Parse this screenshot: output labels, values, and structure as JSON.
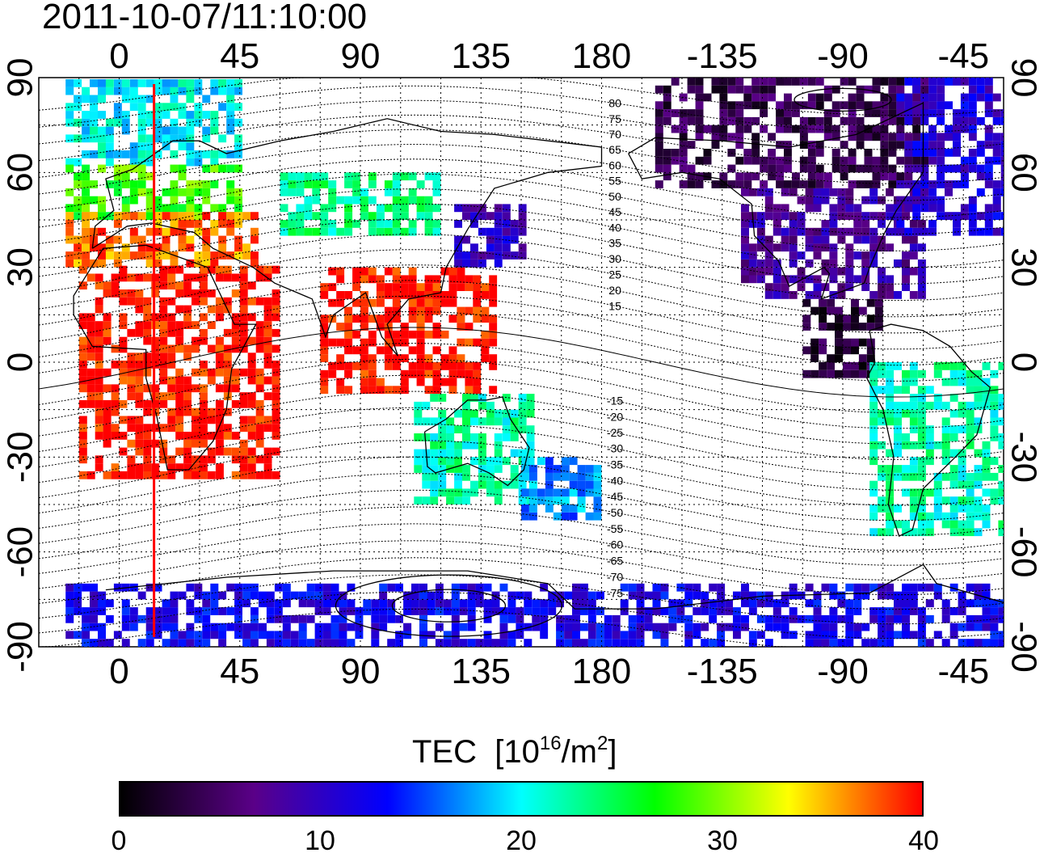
{
  "title": "2011-10-07/11:10:00",
  "map": {
    "lon_range": [
      -30,
      330
    ],
    "lat_range": [
      -90,
      90
    ],
    "x_ticks": [
      {
        "lon": 0,
        "label": "0"
      },
      {
        "lon": 45,
        "label": "45"
      },
      {
        "lon": 90,
        "label": "90"
      },
      {
        "lon": 135,
        "label": "135"
      },
      {
        "lon": 180,
        "label": "180"
      },
      {
        "lon": 225,
        "label": "-135"
      },
      {
        "lon": 270,
        "label": "-90"
      },
      {
        "lon": 315,
        "label": "-45"
      }
    ],
    "y_ticks": [
      {
        "lat": 90,
        "label": "90"
      },
      {
        "lat": 60,
        "label": "60"
      },
      {
        "lat": 30,
        "label": "30"
      },
      {
        "lat": 0,
        "label": "0"
      },
      {
        "lat": -30,
        "label": "-30"
      },
      {
        "lat": -60,
        "label": "-60"
      },
      {
        "lat": -90,
        "label": "-90"
      }
    ],
    "contour_labels": [
      "80",
      "75",
      "70",
      "65",
      "60",
      "55",
      "50",
      "45",
      "40",
      "35",
      "30",
      "25",
      "20",
      "15",
      "-15",
      "-20",
      "-25",
      "-30",
      "-35",
      "-40",
      "-45",
      "-50",
      "-55",
      "-60",
      "-65",
      "-70",
      "-75"
    ],
    "marker_lon": 13,
    "marker_color": "#ff0000",
    "grid": "dotted",
    "tec_regions": [
      {
        "lon": [
          -20,
          45
        ],
        "lat": [
          62,
          88
        ],
        "tec": 20
      },
      {
        "lon": [
          -20,
          45
        ],
        "lat": [
          45,
          62
        ],
        "tec": 28
      },
      {
        "lon": [
          -20,
          50
        ],
        "lat": [
          30,
          47
        ],
        "tec": 37
      },
      {
        "lon": [
          -15,
          60
        ],
        "lat": [
          -37,
          30
        ],
        "tec": 40
      },
      {
        "lon": [
          60,
          120
        ],
        "lat": [
          40,
          60
        ],
        "tec": 23
      },
      {
        "lon": [
          75,
          140
        ],
        "lat": [
          -10,
          30
        ],
        "tec": 40
      },
      {
        "lon": [
          125,
          150
        ],
        "lat": [
          30,
          50
        ],
        "tec": 10
      },
      {
        "lon": [
          110,
          155
        ],
        "lat": [
          -45,
          -10
        ],
        "tec": 22
      },
      {
        "lon": [
          150,
          180
        ],
        "lat": [
          -50,
          -30
        ],
        "tec": 17
      },
      {
        "lon": [
          200,
          300
        ],
        "lat": [
          55,
          88
        ],
        "tec": 4
      },
      {
        "lon": [
          232,
          300
        ],
        "lat": [
          20,
          55
        ],
        "tec": 8
      },
      {
        "lon": [
          255,
          285
        ],
        "lat": [
          -5,
          20
        ],
        "tec": 3
      },
      {
        "lon": [
          290,
          335
        ],
        "lat": [
          40,
          88
        ],
        "tec": 11
      },
      {
        "lon": [
          280,
          330
        ],
        "lat": [
          -55,
          0
        ],
        "tec": 22
      },
      {
        "lon": [
          -20,
          330
        ],
        "lat": [
          -90,
          -70
        ],
        "tec": 12
      }
    ]
  },
  "colorbar": {
    "title": "TEC",
    "units_base": "[10",
    "units_exp1": "16",
    "units_mid": "/m",
    "units_exp2": "2",
    "units_end": "]",
    "min": 0,
    "max": 40,
    "ticks": [
      "0",
      "10",
      "20",
      "30",
      "40"
    ],
    "colors": [
      "#000000",
      "#5a0088",
      "#0000ff",
      "#00ffff",
      "#00ff00",
      "#ffff00",
      "#ff0000"
    ]
  }
}
